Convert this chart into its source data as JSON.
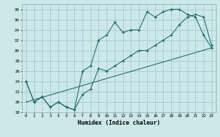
{
  "title": "",
  "xlabel": "Humidex (Indice chaleur)",
  "xlim": [
    -0.5,
    23.5
  ],
  "ylim": [
    18,
    39
  ],
  "yticks": [
    18,
    20,
    22,
    24,
    26,
    28,
    30,
    32,
    34,
    36,
    38
  ],
  "xticks": [
    0,
    1,
    2,
    3,
    4,
    5,
    6,
    7,
    8,
    9,
    10,
    11,
    12,
    13,
    14,
    15,
    16,
    17,
    18,
    19,
    20,
    21,
    22,
    23
  ],
  "bg_color": "#cce8e8",
  "grid_color": "#aacccc",
  "line_color": "#1a6b6b",
  "line1_x": [
    0,
    1,
    2,
    3,
    4,
    5,
    6,
    7,
    8,
    9,
    10,
    11,
    12,
    13,
    14,
    15,
    16,
    17,
    18,
    19,
    20,
    21,
    22,
    23
  ],
  "line1_y": [
    24,
    20,
    21,
    19,
    20,
    19,
    18.5,
    26,
    27,
    32,
    33,
    35.5,
    33.5,
    34,
    34,
    37.5,
    36.5,
    37.5,
    38,
    38,
    37,
    36.5,
    33,
    30.5
  ],
  "line2_x": [
    0,
    1,
    2,
    3,
    4,
    5,
    6,
    7,
    8,
    9,
    10,
    11,
    12,
    13,
    14,
    15,
    16,
    17,
    18,
    19,
    20,
    21,
    22,
    23
  ],
  "line2_y": [
    24,
    20,
    21,
    19,
    20,
    19,
    18.5,
    21.5,
    22.5,
    26.5,
    26,
    27,
    28,
    29,
    30,
    30,
    31,
    32,
    33,
    35,
    36.5,
    37,
    36.5,
    31
  ],
  "line3_x": [
    0,
    23
  ],
  "line3_y": [
    20,
    30.5
  ]
}
